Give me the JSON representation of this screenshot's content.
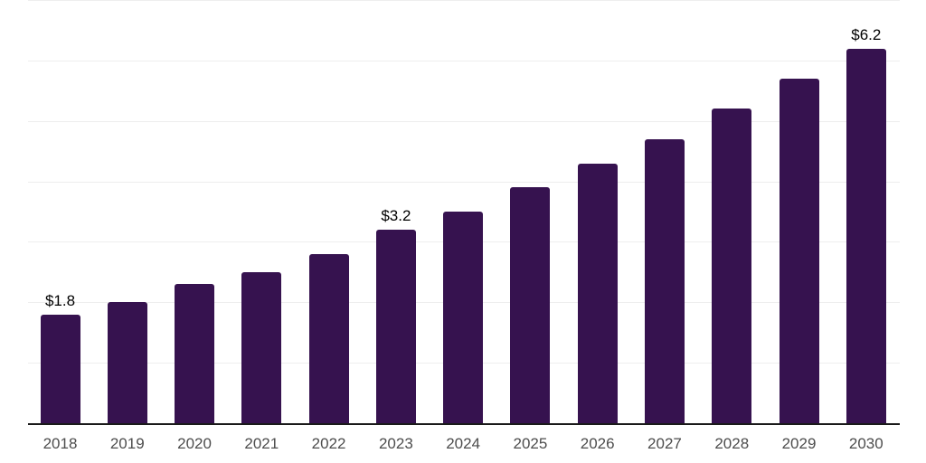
{
  "chart_data": {
    "type": "bar",
    "title": "",
    "xlabel": "",
    "ylabel": "",
    "categories": [
      "2018",
      "2019",
      "2020",
      "2021",
      "2022",
      "2023",
      "2024",
      "2025",
      "2026",
      "2027",
      "2028",
      "2029",
      "2030"
    ],
    "values": [
      1.8,
      2.0,
      2.3,
      2.5,
      2.8,
      3.2,
      3.5,
      3.9,
      4.3,
      4.7,
      5.2,
      5.7,
      6.2
    ],
    "data_labels": [
      {
        "category": "2018",
        "text": "$1.8"
      },
      {
        "category": "2023",
        "text": "$3.2"
      },
      {
        "category": "2030",
        "text": "$6.2"
      }
    ],
    "ylim": [
      0,
      7
    ],
    "grid": true,
    "gridline_values": [
      1,
      2,
      3,
      4,
      5,
      6,
      7
    ],
    "legend": "none",
    "colors": {
      "bar": "#36124f",
      "gridline": "#eeeeee",
      "axis_line": "#1a1a1a",
      "tick_label": "#4d4d4d",
      "data_label": "#000000",
      "background": "#ffffff"
    }
  }
}
